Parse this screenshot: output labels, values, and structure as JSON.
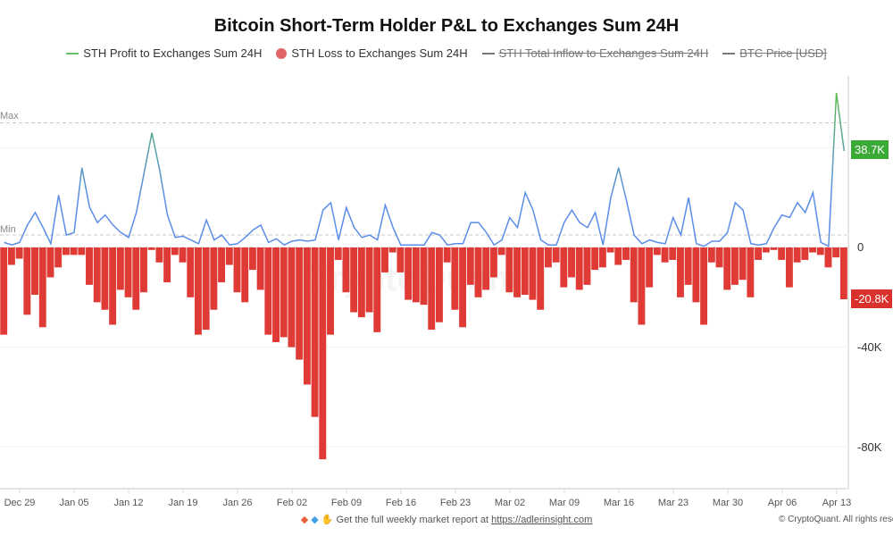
{
  "title": "Bitcoin Short-Term Holder P&L to Exchanges Sum 24H",
  "legend": [
    {
      "label": "STH Profit to Exchanges Sum 24H",
      "color": "#6abf69",
      "marker": "line",
      "hidden": false
    },
    {
      "label": "STH Loss to Exchanges Sum 24H",
      "color": "#e06666",
      "marker": "dot",
      "hidden": false
    },
    {
      "label": "STH Total Inflow to Exchanges Sum 24H",
      "color": "#777777",
      "marker": "line",
      "hidden": true
    },
    {
      "label": "BTC Price [USD]",
      "color": "#777777",
      "marker": "line",
      "hidden": true
    }
  ],
  "ref_lines": {
    "max_label": "Max",
    "min_label": "Min",
    "max_value": 50,
    "min_value": 5
  },
  "watermark": "CryptoQuant",
  "footer": {
    "icons": [
      "orange-diamond-icon",
      "blue-gem-icon",
      "raised-hands-icon"
    ],
    "text": "Get the full weekly market report at",
    "link": "https://adlerinsight.com",
    "copyright": "© CryptoQuant. All rights reserved"
  },
  "chart_data": {
    "type": "line+bar",
    "title": "Bitcoin Short-Term Holder P&L to Exchanges Sum 24H",
    "y_unit": "K",
    "ylim": [
      -90,
      65
    ],
    "y_ticks": [
      {
        "value": 0,
        "label": "0"
      },
      {
        "value": -40,
        "label": "-40K"
      },
      {
        "value": -80,
        "label": "-80K"
      }
    ],
    "x_tick_labels": [
      "Dec 29",
      "Jan 05",
      "Jan 12",
      "Jan 19",
      "Jan 26",
      "Feb 02",
      "Feb 09",
      "Feb 16",
      "Feb 23",
      "Mar 02",
      "Mar 09",
      "Mar 16",
      "Mar 23",
      "Mar 30",
      "Apr 06",
      "Apr 13"
    ],
    "grid": true,
    "legend_position": "top",
    "last_values": {
      "profit": "38.7K",
      "loss": "-20.8K"
    },
    "colors": {
      "profit_low": "#5b8de8",
      "profit_high": "#5cbf4a",
      "loss": "#e03a36",
      "profit_label_bg": "#3aa935",
      "loss_label_bg": "#d9312b"
    },
    "x": [
      "Dec 27",
      "Dec 28",
      "Dec 29",
      "Dec 30",
      "Dec 31",
      "Jan 01",
      "Jan 02",
      "Jan 03",
      "Jan 04",
      "Jan 05",
      "Jan 06",
      "Jan 07",
      "Jan 08",
      "Jan 09",
      "Jan 10",
      "Jan 11",
      "Jan 12",
      "Jan 13",
      "Jan 14",
      "Jan 15",
      "Jan 16",
      "Jan 17",
      "Jan 18",
      "Jan 19",
      "Jan 20",
      "Jan 21",
      "Jan 22",
      "Jan 23",
      "Jan 24",
      "Jan 25",
      "Jan 26",
      "Jan 27",
      "Jan 28",
      "Jan 29",
      "Jan 30",
      "Jan 31",
      "Feb 01",
      "Feb 02",
      "Feb 03",
      "Feb 04",
      "Feb 05",
      "Feb 06",
      "Feb 07",
      "Feb 08",
      "Feb 09",
      "Feb 10",
      "Feb 11",
      "Feb 12",
      "Feb 13",
      "Feb 14",
      "Feb 15",
      "Feb 16",
      "Feb 17",
      "Feb 18",
      "Feb 19",
      "Feb 20",
      "Feb 21",
      "Feb 22",
      "Feb 23",
      "Feb 24",
      "Feb 25",
      "Feb 26",
      "Feb 27",
      "Feb 28",
      "Mar 01",
      "Mar 02",
      "Mar 03",
      "Mar 04",
      "Mar 05",
      "Mar 06",
      "Mar 07",
      "Mar 08",
      "Mar 09",
      "Mar 10",
      "Mar 11",
      "Mar 12",
      "Mar 13",
      "Mar 14",
      "Mar 15",
      "Mar 16",
      "Mar 17",
      "Mar 18",
      "Mar 19",
      "Mar 20",
      "Mar 21",
      "Mar 22",
      "Mar 23",
      "Mar 24",
      "Mar 25",
      "Mar 26",
      "Mar 27",
      "Mar 28",
      "Mar 29",
      "Mar 30",
      "Mar 31",
      "Apr 01",
      "Apr 02",
      "Apr 03",
      "Apr 04",
      "Apr 05",
      "Apr 06",
      "Apr 07",
      "Apr 08",
      "Apr 09",
      "Apr 10",
      "Apr 11",
      "Apr 12",
      "Apr 13",
      "Apr 14"
    ],
    "series": [
      {
        "name": "STH Profit to Exchanges Sum 24H",
        "kind": "line",
        "values": [
          2,
          1,
          2,
          9,
          14,
          8,
          1.5,
          21,
          5,
          6,
          32,
          16,
          10,
          13,
          9,
          6,
          4,
          14,
          30,
          46,
          31,
          13,
          4,
          4.5,
          3,
          1.5,
          11,
          3,
          5,
          1,
          1.5,
          4,
          7,
          9,
          2,
          3.5,
          1,
          2.5,
          3,
          2.5,
          3,
          15,
          18,
          3,
          16,
          8,
          4,
          5,
          3,
          17,
          8,
          1,
          1,
          1,
          1,
          6,
          5,
          1,
          1.5,
          1.5,
          10,
          10,
          6,
          1,
          3,
          12,
          8,
          22,
          15,
          3,
          1,
          1,
          10,
          15,
          10,
          8,
          14,
          1,
          20,
          32,
          19,
          5,
          1.5,
          3,
          2,
          1.5,
          12,
          5,
          20,
          1.5,
          0.5,
          2.5,
          2.5,
          6,
          18,
          15,
          1.5,
          1,
          1.5,
          8,
          13,
          12,
          18,
          14,
          22,
          2,
          0.5,
          62,
          38.7
        ]
      },
      {
        "name": "STH Loss to Exchanges Sum 24H",
        "kind": "bar",
        "values": [
          -35,
          -7,
          -4.5,
          -27,
          -19,
          -32,
          -12,
          -8,
          -3,
          -3,
          -3,
          -15,
          -22,
          -25,
          -31,
          -17,
          -20,
          -25,
          -18,
          -1,
          -6,
          -14,
          -3,
          -6,
          -20,
          -35,
          -33,
          -25,
          -14,
          -7,
          -18,
          -22,
          -9,
          -17,
          -35,
          -38,
          -36,
          -40,
          -45,
          -55,
          -68,
          -85,
          -35,
          -5,
          -18,
          -26,
          -28,
          -26,
          -34,
          -10,
          -2,
          -10,
          -21,
          -22,
          -23,
          -33,
          -30,
          -6,
          -25,
          -32,
          -15,
          -20,
          -17,
          -12,
          -3,
          -18,
          -20,
          -19,
          -21,
          -25,
          -8,
          -6,
          -16,
          -12,
          -17,
          -15,
          -9,
          -8,
          -2,
          -7,
          -5,
          -22,
          -31,
          -16,
          -3,
          -6,
          -5,
          -20,
          -15,
          -22,
          -31,
          -6,
          -8,
          -17,
          -15,
          -13,
          -20,
          -5,
          -2,
          -1,
          -5,
          -16,
          -6,
          -5,
          -2,
          -3,
          -8,
          -4,
          -20.8
        ]
      }
    ]
  }
}
